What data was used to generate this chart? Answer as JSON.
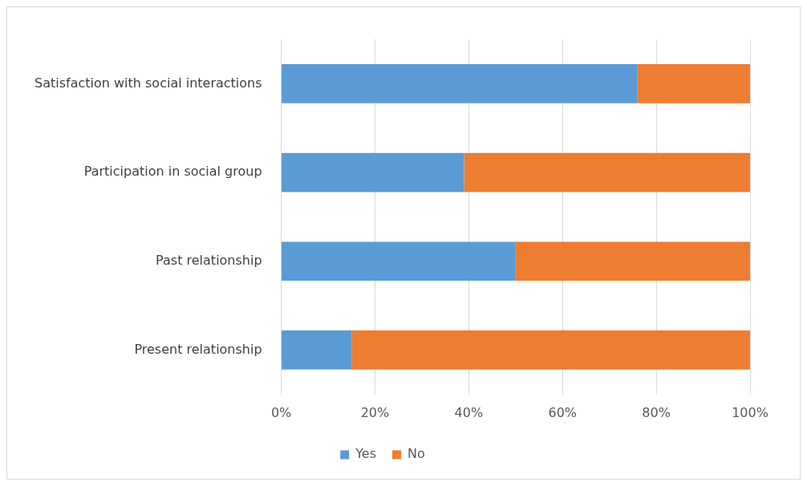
{
  "chart_data": {
    "type": "bar",
    "orientation": "horizontal",
    "stacked": true,
    "categories": [
      "Satisfaction with social interactions",
      "Participation in social group",
      "Past relationship",
      "Present relationship"
    ],
    "series": [
      {
        "name": "Yes",
        "color": "#5b9bd5",
        "values": [
          76,
          39,
          50,
          15
        ]
      },
      {
        "name": "No",
        "color": "#ed7d31",
        "values": [
          24,
          61,
          50,
          85
        ]
      }
    ],
    "xlim": [
      0,
      100
    ],
    "xticks": [
      {
        "value": 0,
        "label": "0%"
      },
      {
        "value": 20,
        "label": "20%"
      },
      {
        "value": 40,
        "label": "40%"
      },
      {
        "value": 60,
        "label": "60%"
      },
      {
        "value": 80,
        "label": "80%"
      },
      {
        "value": 100,
        "label": "100%"
      }
    ],
    "grid": "x",
    "legend": "bottom"
  }
}
